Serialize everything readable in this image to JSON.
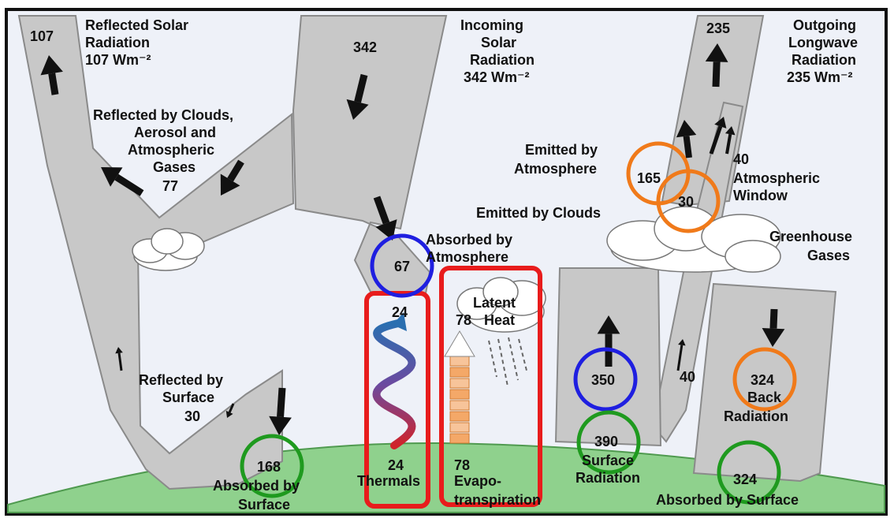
{
  "colors": {
    "sky": "#eef1f8",
    "flow": "#c8c8c8",
    "flow_edge": "#8a8a8a",
    "ground": "#8fd18d",
    "ground_edge": "#4f9a4f",
    "circle_blue": "#1f1fe0",
    "circle_green": "#1f9a1f",
    "circle_orange": "#f07a1a",
    "box_red": "#e81c1c",
    "arrow": "#111111"
  },
  "labels": {
    "reflected_solar": [
      "Reflected Solar",
      "Radiation",
      "107 Wm⁻²"
    ],
    "incoming_solar": [
      "Incoming",
      "Solar",
      "Radiation",
      "342 Wm⁻²"
    ],
    "outgoing_longwave": [
      "Outgoing",
      "Longwave",
      "Radiation",
      "235 Wm⁻²"
    ],
    "reflected_clouds": [
      "Reflected by Clouds,",
      "Aerosol and",
      "Atmospheric",
      "Gases"
    ],
    "reflected_surface": [
      "Reflected by",
      "Surface"
    ],
    "absorbed_surface_left": [
      "Absorbed by",
      "Surface"
    ],
    "absorbed_atmosphere": [
      "Absorbed by",
      "Atmosphere"
    ],
    "emitted_atmosphere": [
      "Emitted by",
      "Atmosphere"
    ],
    "emitted_clouds": "Emitted by Clouds",
    "atmospheric_window": [
      "Atmospheric",
      "Window"
    ],
    "greenhouse_gases": [
      "Greenhouse",
      "Gases"
    ],
    "latent_heat": [
      "Latent",
      "Heat"
    ],
    "thermals": "Thermals",
    "evapotranspiration": [
      "Evapo-",
      "transpiration"
    ],
    "surface_radiation": [
      "Surface",
      "Radiation"
    ],
    "back_radiation": [
      "Back",
      "Radiation"
    ],
    "absorbed_surface_right": "Absorbed by Surface"
  },
  "values": {
    "reflected_solar": "107",
    "incoming_solar": "342",
    "outgoing_longwave": "235",
    "reflected_clouds": "77",
    "reflected_surface": "30",
    "absorbed_surface_left": "168",
    "absorbed_atmosphere": "67",
    "thermals_top": "24",
    "thermals_bottom": "24",
    "latent_heat_top": "78",
    "latent_heat_bottom": "78",
    "emitted_atmosphere": "165",
    "window_inner": "30",
    "atmospheric_window": "40",
    "window_lower": "40",
    "surface_radiation_up": "350",
    "surface_radiation": "390",
    "back_radiation": "324",
    "absorbed_surface_right": "324"
  }
}
